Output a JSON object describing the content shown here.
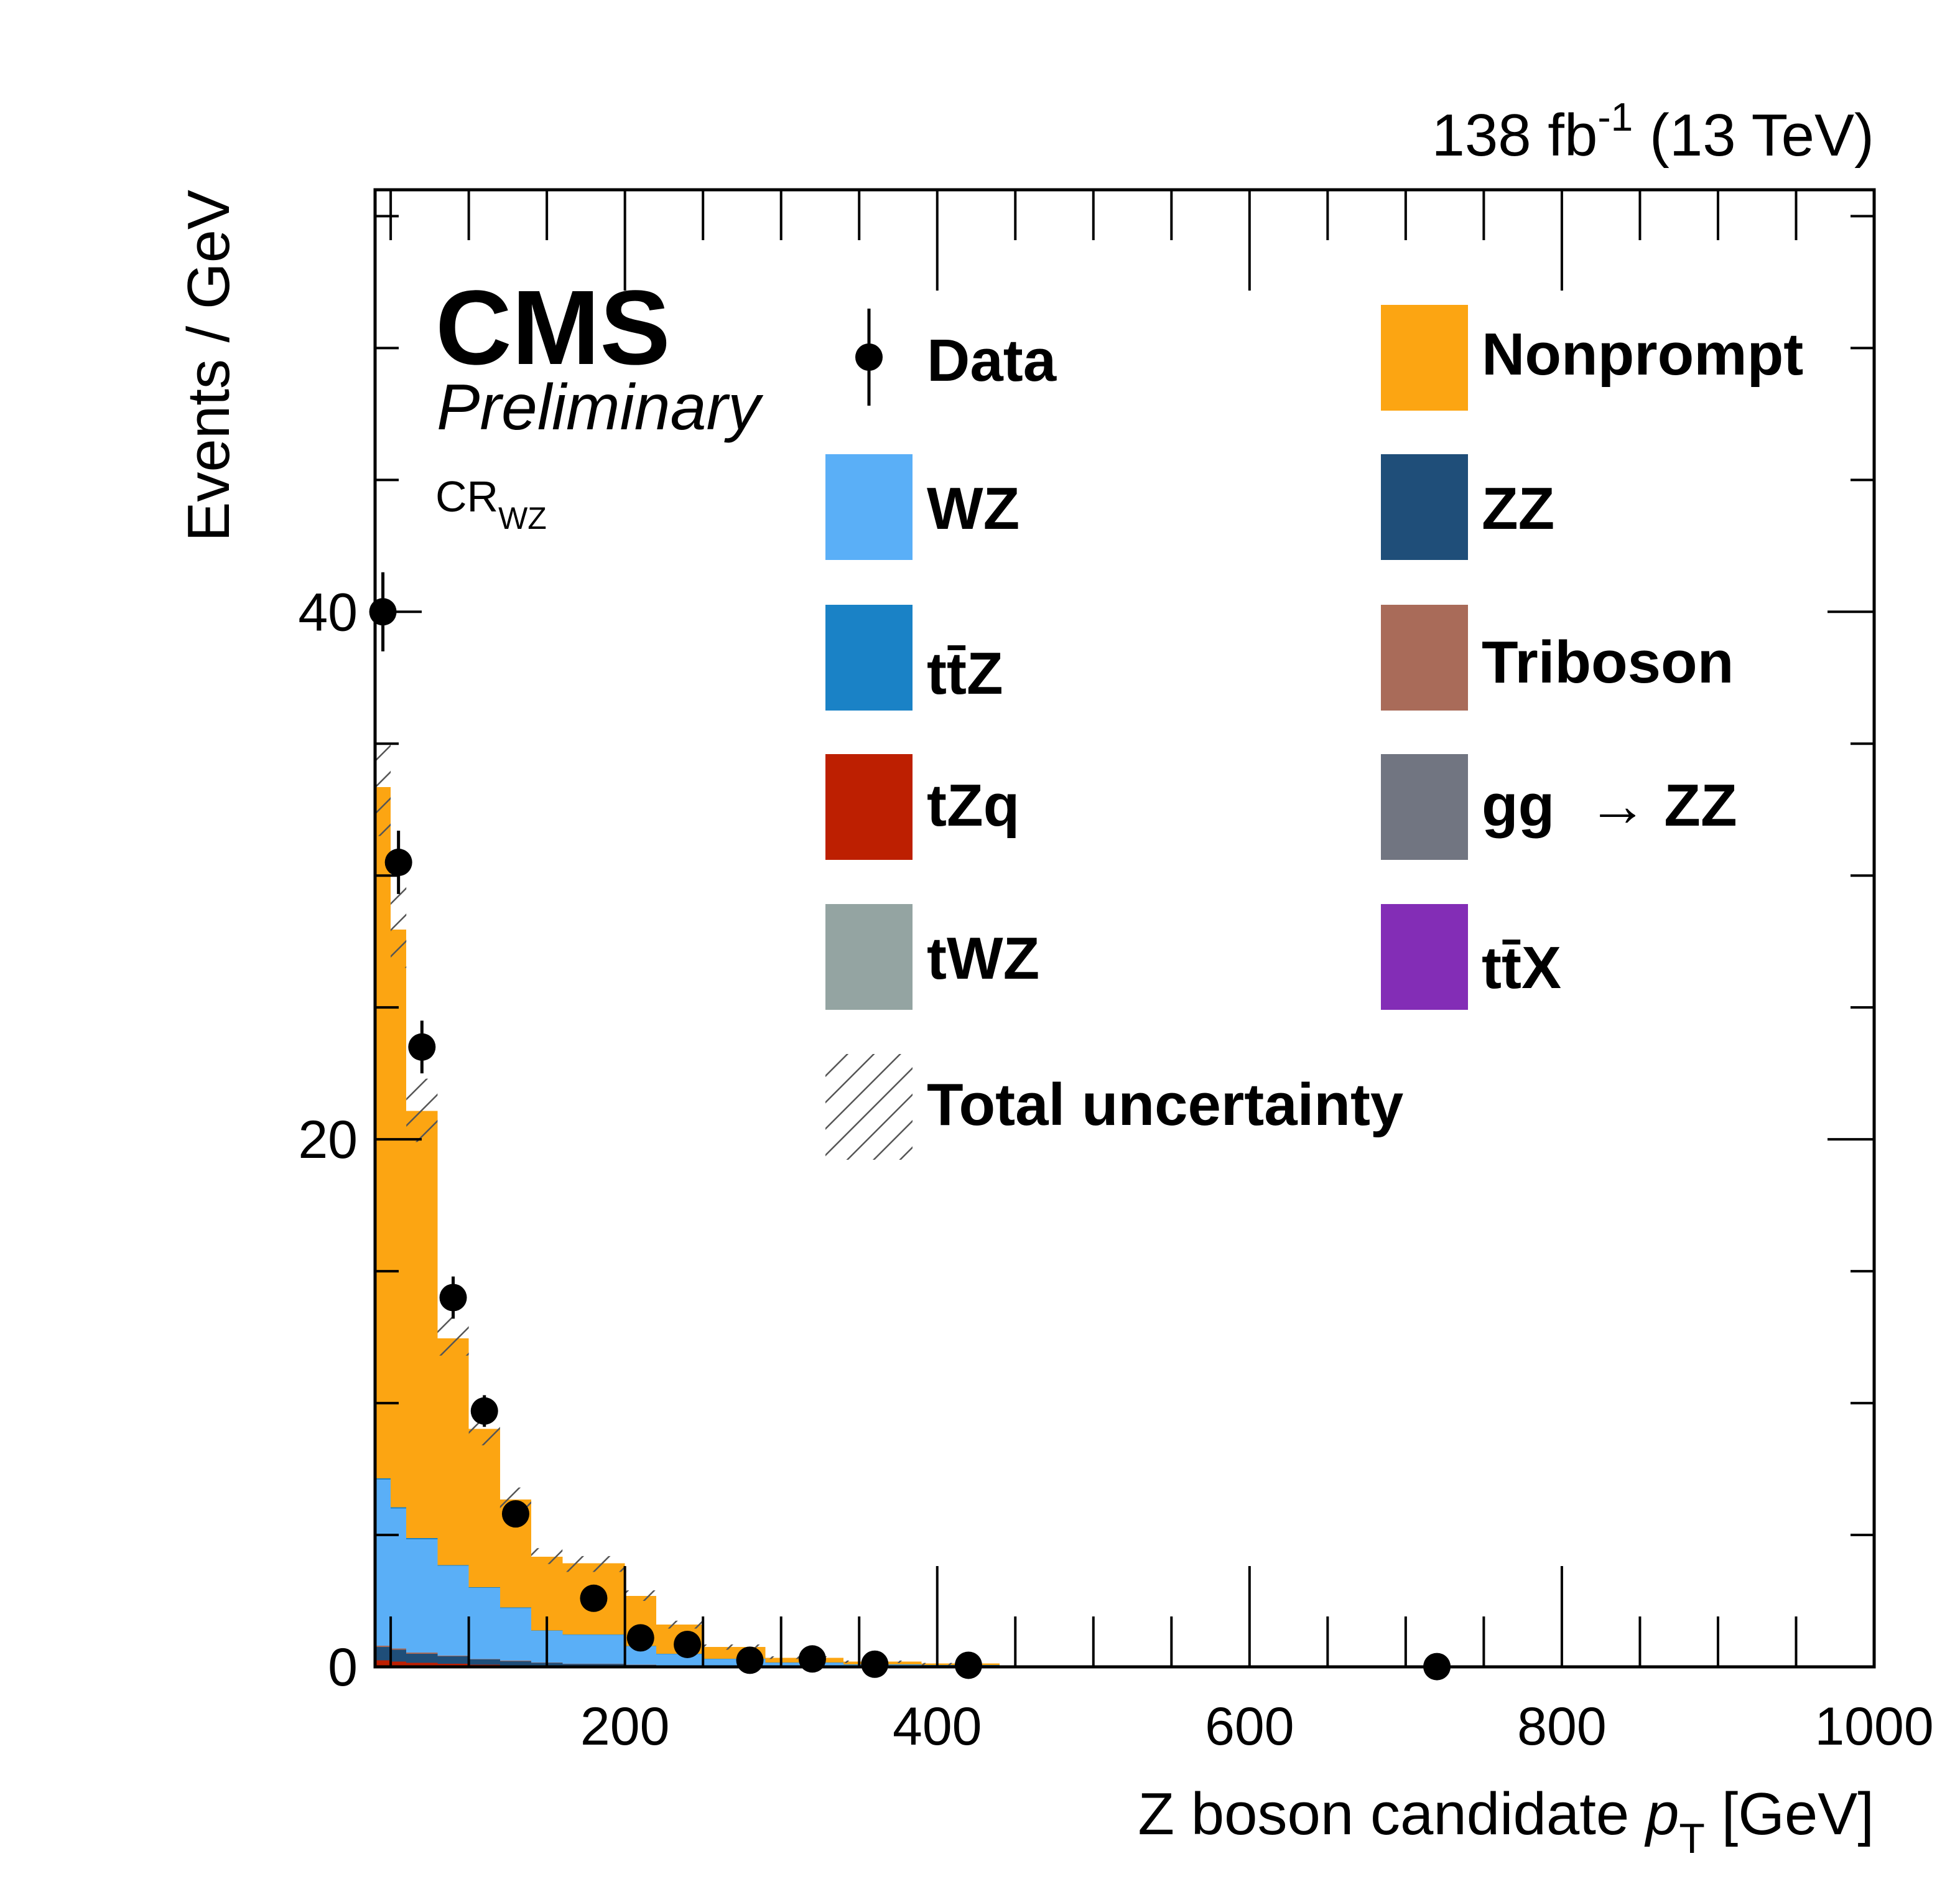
{
  "chart_data": {
    "type": "bar",
    "subtype": "stacked-histogram",
    "title": "",
    "experiment": "CMS",
    "status": "Preliminary",
    "region": {
      "base": "CR",
      "sub": "WZ"
    },
    "lumi": {
      "prefix": "138 fb",
      "exponent": "-1",
      "suffix": " (13 TeV)"
    },
    "xlabel": {
      "prefix": "Z boson candidate ",
      "var": "p",
      "sub": "T",
      "suffix": " [GeV]"
    },
    "ylabel": "Events / GeV",
    "xlim": [
      40,
      1000
    ],
    "ylim": [
      0,
      56
    ],
    "xticks": [
      200,
      400,
      600,
      800,
      1000
    ],
    "xtick_labels": [
      "200",
      "400",
      "600",
      "800",
      "1000"
    ],
    "yticks": [
      0,
      20,
      40
    ],
    "ytick_labels": [
      "0",
      "20",
      "40"
    ],
    "bin_edges": [
      40,
      50,
      60,
      80,
      100,
      120,
      140,
      160,
      200,
      220,
      250,
      290,
      340,
      390,
      440,
      1000
    ],
    "series": [
      {
        "name": "tZq",
        "color": "#bd1f01",
        "values": [
          0.25,
          0.2,
          0.15,
          0.12,
          0.08,
          0.06,
          0.04,
          0.03,
          0.02,
          0.01,
          0.005,
          0.003,
          0.002,
          0.001,
          0.0005
        ]
      },
      {
        "name": "ZZ",
        "color": "#1f4e79",
        "values": [
          0.5,
          0.45,
          0.35,
          0.28,
          0.2,
          0.15,
          0.12,
          0.08,
          0.05,
          0.03,
          0.02,
          0.01,
          0.005,
          0.003,
          0.002
        ]
      },
      {
        "name": "Triboson",
        "color": "#a96b59",
        "values": [
          0.05,
          0.05,
          0.04,
          0.03,
          0.02,
          0.02,
          0.01,
          0.01,
          0.01,
          0.005,
          0.003,
          0.002,
          0.001,
          0.001,
          0.0005
        ]
      },
      {
        "name": "WZ",
        "color": "#5aaff7",
        "values": [
          6.3,
          5.3,
          4.3,
          3.4,
          2.7,
          2.0,
          1.2,
          1.1,
          0.7,
          0.45,
          0.28,
          0.15,
          0.09,
          0.06,
          0.01
        ]
      },
      {
        "name": "ttZ",
        "color": "#1a82c6",
        "values": [
          0.05,
          0.05,
          0.04,
          0.03,
          0.02,
          0.02,
          0.01,
          0.01,
          0.01,
          0.005,
          0.003,
          0.002,
          0.001,
          0.001,
          0.0005
        ]
      },
      {
        "name": "Nonprompt",
        "color": "#fca512",
        "values": [
          26.2,
          21.9,
          16.2,
          8.6,
          6.0,
          4.1,
          2.8,
          2.7,
          1.9,
          1.1,
          0.44,
          0.18,
          0.1,
          0.06,
          0.01
        ]
      }
    ],
    "stack_total": [
      33.4,
      28.0,
      21.1,
      12.5,
      9.0,
      6.4,
      4.2,
      3.9,
      2.7,
      1.6,
      0.75,
      0.35,
      0.2,
      0.12,
      0.025
    ],
    "uncertainty_band": [
      [
        31.5,
        35.2
      ],
      [
        26.5,
        29.6
      ],
      [
        19.9,
        22.3
      ],
      [
        11.8,
        13.3
      ],
      [
        8.4,
        9.7
      ],
      [
        6.0,
        6.8
      ],
      [
        3.9,
        4.5
      ],
      [
        3.6,
        4.2
      ],
      [
        2.5,
        2.9
      ],
      [
        1.45,
        1.75
      ],
      [
        0.65,
        0.85
      ],
      [
        0.3,
        0.4
      ],
      [
        0.16,
        0.24
      ],
      [
        0.09,
        0.15
      ],
      [
        0.015,
        0.035
      ]
    ],
    "data_points": [
      {
        "x": 45,
        "y": 40.0,
        "err": 1.5
      },
      {
        "x": 55,
        "y": 30.5,
        "err": 1.2
      },
      {
        "x": 70,
        "y": 23.5,
        "err": 1.0
      },
      {
        "x": 90,
        "y": 14.0,
        "err": 0.8
      },
      {
        "x": 110,
        "y": 9.7,
        "err": 0.6
      },
      {
        "x": 130,
        "y": 5.8,
        "err": 0.5
      },
      {
        "x": 180,
        "y": 2.6,
        "err": 0.3
      },
      {
        "x": 210,
        "y": 1.1,
        "err": 0.2
      },
      {
        "x": 240,
        "y": 0.85,
        "err": 0.15
      },
      {
        "x": 280,
        "y": 0.25,
        "err": 0.08
      },
      {
        "x": 320,
        "y": 0.3,
        "err": 0.08
      },
      {
        "x": 360,
        "y": 0.1,
        "err": 0.05
      },
      {
        "x": 420,
        "y": 0.06,
        "err": 0.04
      },
      {
        "x": 720,
        "y": 0.01,
        "err": 0.01
      }
    ],
    "legend": {
      "placement": "upper-right, two columns",
      "entries": [
        {
          "key": "data",
          "label": "Data",
          "kind": "marker"
        },
        {
          "key": "nonprompt",
          "label": "Nonprompt",
          "kind": "fill",
          "color": "#fca512"
        },
        {
          "key": "wz",
          "label": "WZ",
          "kind": "fill",
          "color": "#5aaff7"
        },
        {
          "key": "zz",
          "label": "ZZ",
          "kind": "fill",
          "color": "#1f4e79"
        },
        {
          "key": "ttz",
          "label": "tt̄Z",
          "kind": "fill",
          "color": "#1a82c6"
        },
        {
          "key": "triboson",
          "label": "Triboson",
          "kind": "fill",
          "color": "#a96b59"
        },
        {
          "key": "tzq",
          "label": "tZq",
          "kind": "fill",
          "color": "#bd1f01"
        },
        {
          "key": "ggzz",
          "label": "gg  → ZZ",
          "kind": "fill",
          "color": "#717581"
        },
        {
          "key": "twz",
          "label": "tWZ",
          "kind": "fill",
          "color": "#94a4a2"
        },
        {
          "key": "ttx",
          "label": "tt̄X",
          "kind": "fill",
          "color": "#832db6"
        },
        {
          "key": "unc",
          "label": "Total uncertainty",
          "kind": "hatch"
        }
      ]
    }
  }
}
